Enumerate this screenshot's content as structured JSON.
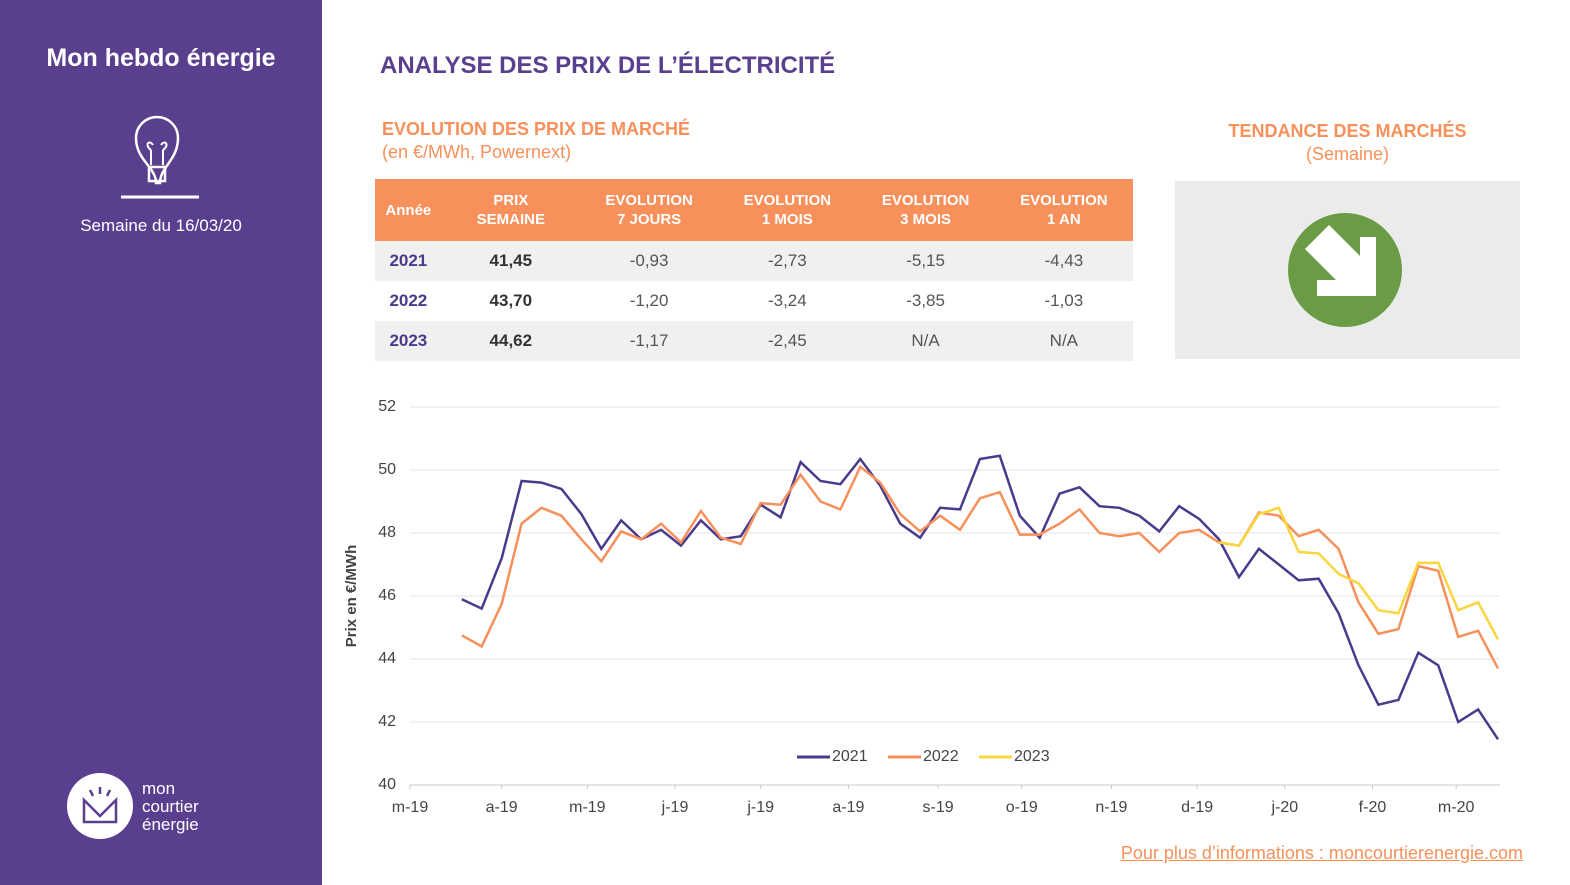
{
  "sidebar": {
    "title": "Mon hebdo énergie",
    "week": "Semaine du 16/03/20",
    "logo": [
      "mon",
      "courtier",
      "énergie"
    ]
  },
  "header": {
    "title": "ANALYSE DES PRIX DE L’ÉLECTRICITÉ"
  },
  "table": {
    "title": "EVOLUTION DES PRIX DE MARCHÉ",
    "subtitle": "(en €/MWh, Powernext)",
    "columns": [
      "Année",
      "PRIX SEMAINE",
      "EVOLUTION 7 JOURS",
      "EVOLUTION 1 MOIS",
      "EVOLUTION 3 MOIS",
      "EVOLUTION 1 AN"
    ],
    "rows": [
      [
        "2021",
        "41,45",
        "-0,93",
        "-2,73",
        "-5,15",
        "-4,43"
      ],
      [
        "2022",
        "43,70",
        "-1,20",
        "-3,24",
        "-3,85",
        "-1,03"
      ],
      [
        "2023",
        "44,62",
        "-1,17",
        "-2,45",
        "N/A",
        "N/A"
      ]
    ]
  },
  "trend": {
    "title": "TENDANCE DES MARCHÉS",
    "subtitle": "(Semaine)"
  },
  "footer": {
    "link": "Pour plus d’informations : moncourtierenergie.com"
  },
  "chart_data": {
    "type": "line",
    "y_label": "Prix en €/MWh",
    "ylim": [
      40,
      52
    ],
    "yticks": [
      40,
      42,
      44,
      46,
      48,
      50,
      52
    ],
    "xlim": [
      -2.6,
      52.1
    ],
    "xticks": [
      {
        "value": -2.6,
        "label": "m-19"
      },
      {
        "value": 2.0,
        "label": "a-19"
      },
      {
        "value": 6.3,
        "label": "m-19"
      },
      {
        "value": 10.7,
        "label": "j-19"
      },
      {
        "value": 15.0,
        "label": "j-19"
      },
      {
        "value": 19.4,
        "label": "a-19"
      },
      {
        "value": 23.9,
        "label": "s-19"
      },
      {
        "value": 28.1,
        "label": "o-19"
      },
      {
        "value": 32.6,
        "label": "n-19"
      },
      {
        "value": 36.9,
        "label": "d-19"
      },
      {
        "value": 41.3,
        "label": "j-20"
      },
      {
        "value": 45.7,
        "label": "f-20"
      },
      {
        "value": 49.9,
        "label": "m-20"
      }
    ],
    "grid": true,
    "legend": "bottom",
    "series": [
      {
        "name": "2021",
        "color": "#4b3a8c",
        "values": [
          45.9,
          45.6,
          47.2,
          49.65,
          49.6,
          49.4,
          48.6,
          47.5,
          48.4,
          47.8,
          48.1,
          47.6,
          48.4,
          47.8,
          47.9,
          48.9,
          48.5,
          50.25,
          49.65,
          49.55,
          50.35,
          49.5,
          48.3,
          47.85,
          48.8,
          48.75,
          50.35,
          50.45,
          48.55,
          47.85,
          49.25,
          49.45,
          48.85,
          48.8,
          48.55,
          48.05,
          48.85,
          48.45,
          47.8,
          46.6,
          47.5,
          47.0,
          46.5,
          46.55,
          45.45,
          43.8,
          42.55,
          42.7,
          44.2,
          43.8,
          42.0,
          42.4,
          41.45
        ]
      },
      {
        "name": "2022",
        "color": "#f7905a",
        "values": [
          44.75,
          44.4,
          45.75,
          48.3,
          48.8,
          48.55,
          47.8,
          47.1,
          48.05,
          47.8,
          48.3,
          47.7,
          48.7,
          47.85,
          47.65,
          48.95,
          48.9,
          49.85,
          49.0,
          48.75,
          50.1,
          49.6,
          48.6,
          48.05,
          48.55,
          48.1,
          49.1,
          49.3,
          47.95,
          47.95,
          48.3,
          48.75,
          48.0,
          47.9,
          48.0,
          47.4,
          48.0,
          48.1,
          47.7,
          47.6,
          48.65,
          48.55,
          47.9,
          48.1,
          47.5,
          45.8,
          44.8,
          44.95,
          46.95,
          46.8,
          44.7,
          44.9,
          43.7
        ]
      },
      {
        "name": "2023",
        "color": "#f9d53e",
        "values": [
          null,
          null,
          null,
          null,
          null,
          null,
          null,
          null,
          null,
          null,
          null,
          null,
          null,
          null,
          null,
          null,
          null,
          null,
          null,
          null,
          null,
          null,
          null,
          null,
          null,
          null,
          null,
          null,
          null,
          null,
          null,
          null,
          null,
          null,
          null,
          null,
          null,
          null,
          47.7,
          47.6,
          48.6,
          48.8,
          47.4,
          47.35,
          46.7,
          46.4,
          45.55,
          45.45,
          47.05,
          47.05,
          45.55,
          45.8,
          44.62
        ]
      }
    ]
  }
}
